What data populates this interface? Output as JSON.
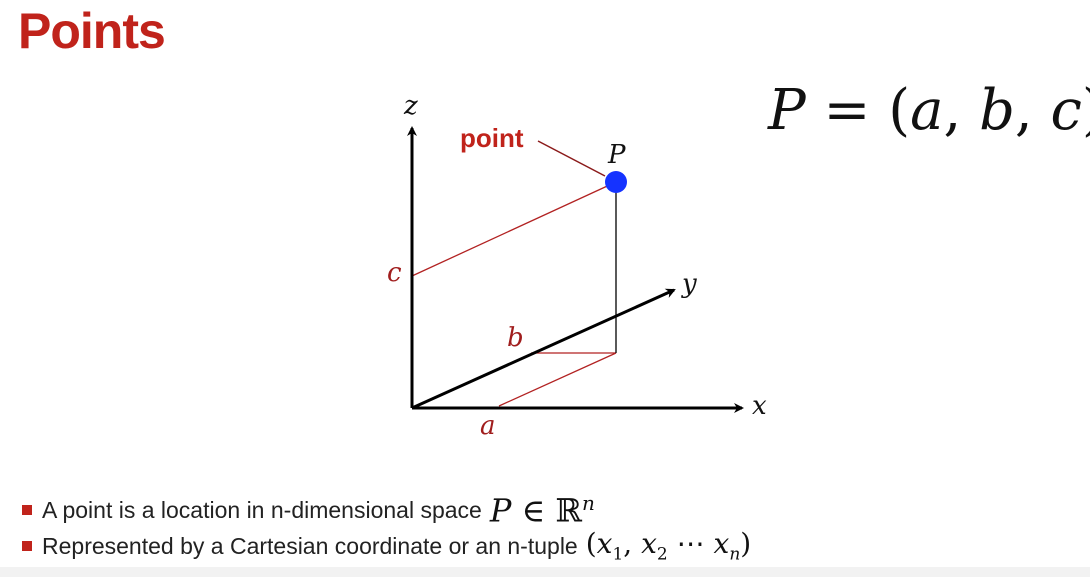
{
  "title": "Points",
  "diagram": {
    "axis_labels": {
      "x": "x",
      "y": "y",
      "z": "z"
    },
    "component_labels": {
      "a": "a",
      "b": "b",
      "c": "c"
    },
    "point_label": "P",
    "callout_label": "point",
    "colors": {
      "title": "#c0231b",
      "guide_lines": "#b22222",
      "component_labels": "#a01d1d",
      "point_fill": "#1533ff",
      "axes": "#000000"
    }
  },
  "formula": {
    "lhs": "P",
    "eq": " = (",
    "a": "a",
    "c1": ", ",
    "b": "b",
    "c2": ", ",
    "c": "c",
    "close": ")"
  },
  "bullets": [
    {
      "text": "A point is a location in n-dimensional space"
    },
    {
      "text": "Represented by a Cartesian coordinate or an n-tuple"
    }
  ],
  "math1": {
    "P": "P",
    "in": " ∈ ",
    "R": "ℝ",
    "n": "n"
  },
  "math2": {
    "open": "(",
    "x1": "x",
    "s1": "1",
    "comma1": ", ",
    "x2": "x",
    "s2": "2",
    "dots": " ⋯ ",
    "xn": "x",
    "sn": "n",
    "close": ")"
  }
}
